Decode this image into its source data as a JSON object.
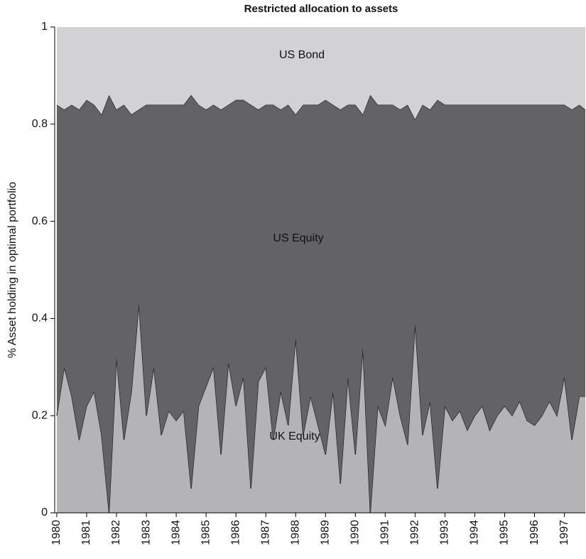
{
  "chart_data": {
    "type": "stacked_area",
    "title": "Restricted allocation to assets",
    "y_label": "% Asset holding in optimal portfolio",
    "x": [
      1980,
      1980.25,
      1980.5,
      1980.75,
      1981,
      1981.25,
      1981.5,
      1981.75,
      1982,
      1982.25,
      1982.5,
      1982.75,
      1983,
      1983.25,
      1983.5,
      1983.75,
      1984,
      1984.25,
      1984.5,
      1984.75,
      1985,
      1985.25,
      1985.5,
      1985.75,
      1986,
      1986.25,
      1986.5,
      1986.75,
      1987,
      1987.25,
      1987.5,
      1987.75,
      1988,
      1988.25,
      1988.5,
      1988.75,
      1989,
      1989.25,
      1989.5,
      1989.75,
      1990,
      1990.25,
      1990.5,
      1990.75,
      1991,
      1991.25,
      1991.5,
      1991.75,
      1992,
      1992.25,
      1992.5,
      1992.75,
      1993,
      1993.25,
      1993.5,
      1993.75,
      1994,
      1994.25,
      1994.5,
      1994.75,
      1995,
      1995.25,
      1995.5,
      1995.75,
      1996,
      1996.25,
      1996.5,
      1996.75,
      1997,
      1997.25,
      1997.5,
      1997.7
    ],
    "series": [
      {
        "name": "UK Equity",
        "color": "#b4b4b6",
        "values": [
          0.2,
          0.3,
          0.24,
          0.15,
          0.22,
          0.25,
          0.16,
          0.0,
          0.32,
          0.15,
          0.25,
          0.43,
          0.2,
          0.3,
          0.16,
          0.21,
          0.19,
          0.21,
          0.05,
          0.22,
          0.26,
          0.3,
          0.12,
          0.31,
          0.22,
          0.28,
          0.05,
          0.27,
          0.3,
          0.15,
          0.25,
          0.18,
          0.36,
          0.16,
          0.24,
          0.18,
          0.12,
          0.25,
          0.06,
          0.28,
          0.12,
          0.34,
          0.0,
          0.22,
          0.18,
          0.28,
          0.2,
          0.14,
          0.39,
          0.16,
          0.23,
          0.05,
          0.22,
          0.19,
          0.21,
          0.17,
          0.2,
          0.22,
          0.17,
          0.2,
          0.22,
          0.2,
          0.23,
          0.19,
          0.18,
          0.2,
          0.23,
          0.2,
          0.28,
          0.15,
          0.24,
          0.24
        ]
      },
      {
        "name": "US Equity",
        "color": "#636366",
        "values": [
          0.64,
          0.53,
          0.6,
          0.68,
          0.63,
          0.59,
          0.66,
          0.86,
          0.51,
          0.69,
          0.57,
          0.4,
          0.64,
          0.54,
          0.68,
          0.63,
          0.65,
          0.63,
          0.81,
          0.62,
          0.57,
          0.54,
          0.71,
          0.53,
          0.63,
          0.57,
          0.79,
          0.56,
          0.54,
          0.69,
          0.58,
          0.66,
          0.46,
          0.68,
          0.6,
          0.66,
          0.73,
          0.59,
          0.77,
          0.56,
          0.72,
          0.48,
          0.86,
          0.62,
          0.66,
          0.56,
          0.63,
          0.7,
          0.42,
          0.68,
          0.6,
          0.8,
          0.62,
          0.65,
          0.63,
          0.67,
          0.64,
          0.62,
          0.67,
          0.64,
          0.62,
          0.64,
          0.61,
          0.65,
          0.66,
          0.64,
          0.61,
          0.64,
          0.56,
          0.68,
          0.6,
          0.59
        ]
      },
      {
        "name": "US Bond",
        "color": "#d2d2d4",
        "values": [
          0.16,
          0.17,
          0.16,
          0.17,
          0.15,
          0.16,
          0.18,
          0.14,
          0.17,
          0.16,
          0.18,
          0.17,
          0.16,
          0.16,
          0.16,
          0.16,
          0.16,
          0.16,
          0.14,
          0.16,
          0.17,
          0.16,
          0.17,
          0.16,
          0.15,
          0.15,
          0.16,
          0.17,
          0.16,
          0.16,
          0.17,
          0.16,
          0.18,
          0.16,
          0.16,
          0.16,
          0.15,
          0.16,
          0.17,
          0.16,
          0.16,
          0.18,
          0.14,
          0.16,
          0.16,
          0.16,
          0.17,
          0.16,
          0.19,
          0.16,
          0.17,
          0.15,
          0.16,
          0.16,
          0.16,
          0.16,
          0.16,
          0.16,
          0.16,
          0.16,
          0.16,
          0.16,
          0.16,
          0.16,
          0.16,
          0.16,
          0.16,
          0.16,
          0.16,
          0.17,
          0.16,
          0.17
        ]
      }
    ],
    "xlim": [
      1979.93,
      1997.7
    ],
    "ylim": [
      0,
      1
    ],
    "xticks": [
      1980,
      1981,
      1982,
      1983,
      1984,
      1985,
      1986,
      1987,
      1988,
      1989,
      1990,
      1991,
      1992,
      1993,
      1994,
      1995,
      1996,
      1997
    ],
    "yticks": [
      0,
      0.2,
      0.4,
      0.6,
      0.8,
      1
    ]
  }
}
